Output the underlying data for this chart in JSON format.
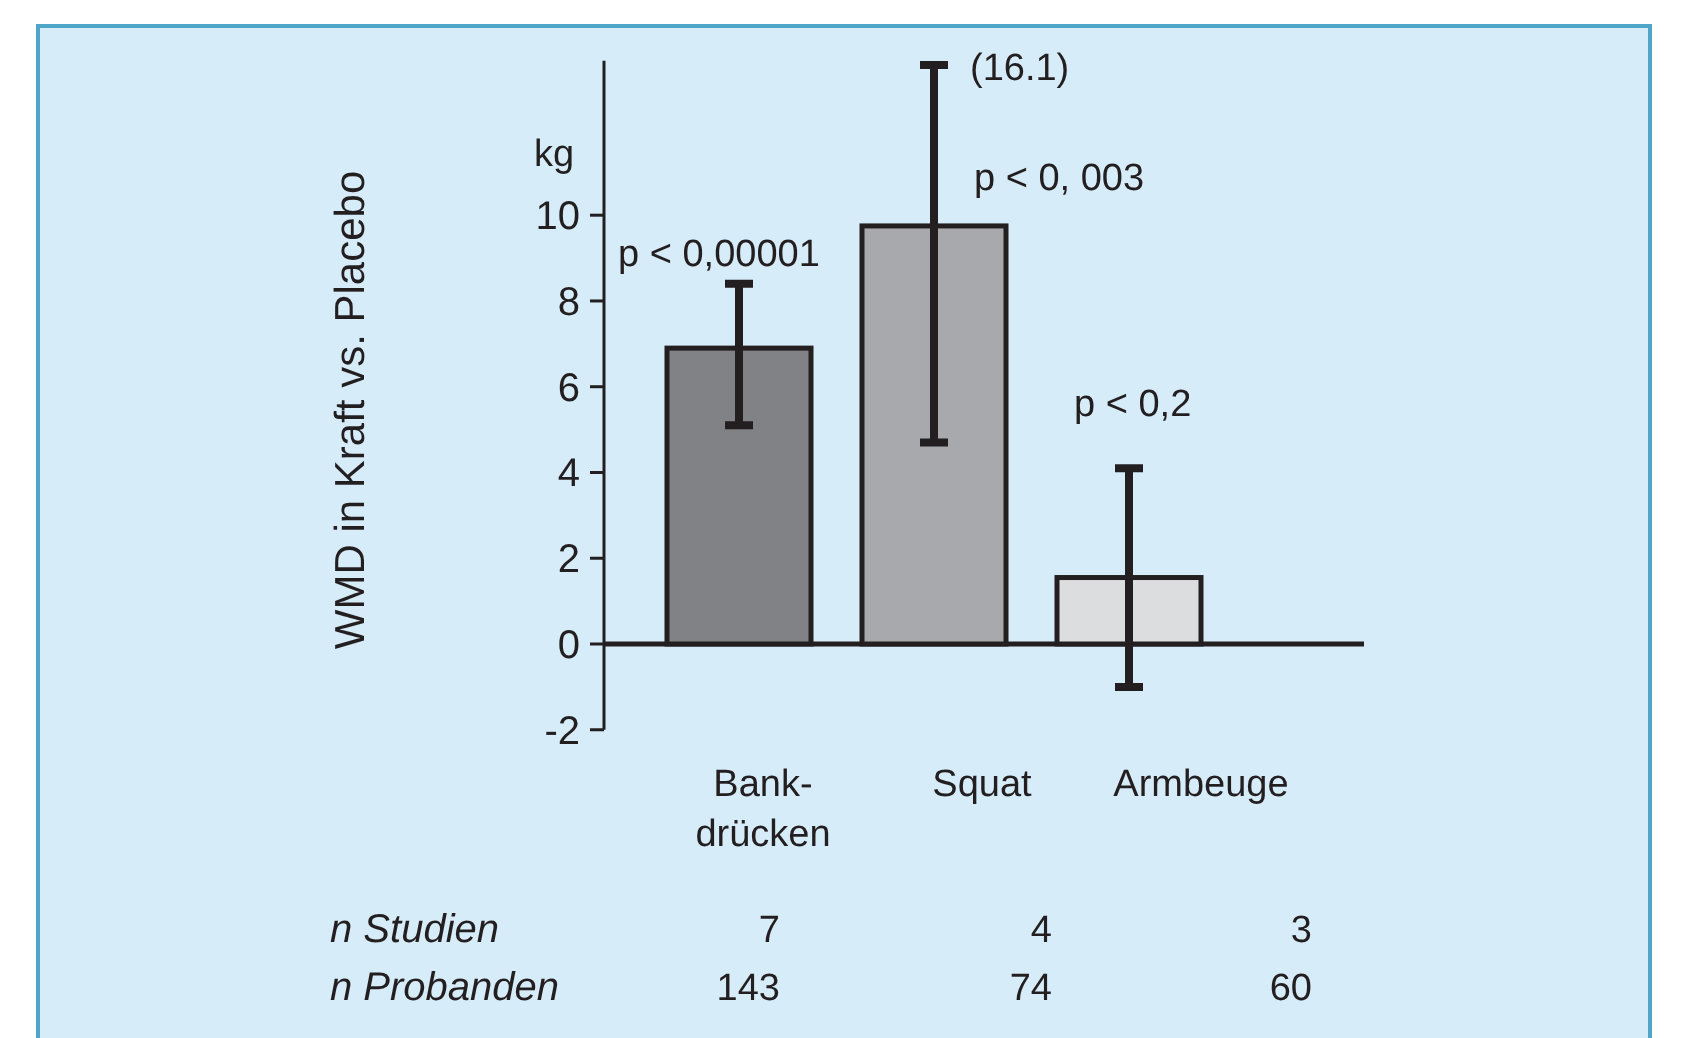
{
  "chart_data": {
    "type": "bar",
    "ylabel": "WMD in Kraft vs. Placebo",
    "categories": [
      "Bank-drücken",
      "Squat",
      "Armbeuge"
    ],
    "values": [
      6.9,
      9.75,
      1.55
    ],
    "colors": [
      "#808285",
      "#a7a9ac",
      "#dcdddf"
    ],
    "errors": [
      [
        5.1,
        8.4
      ],
      [
        4.7,
        13.5
      ],
      [
        -1.0,
        4.1
      ]
    ],
    "ref_lines": [
      {
        "axis": "y",
        "value": 0,
        "color": "#231f20"
      }
    ],
    "ylim": [
      -2,
      13.6
    ],
    "yticks": [
      -2,
      0,
      2,
      4,
      6,
      8,
      10
    ],
    "grid": false,
    "annotations": [
      "kg",
      "p < 0,00001",
      "(16.1)",
      "p < 0, 003",
      "p < 0,2",
      "n Studien",
      "7",
      "4",
      "3",
      "n Probanden",
      "143",
      "74",
      "60"
    ]
  }
}
